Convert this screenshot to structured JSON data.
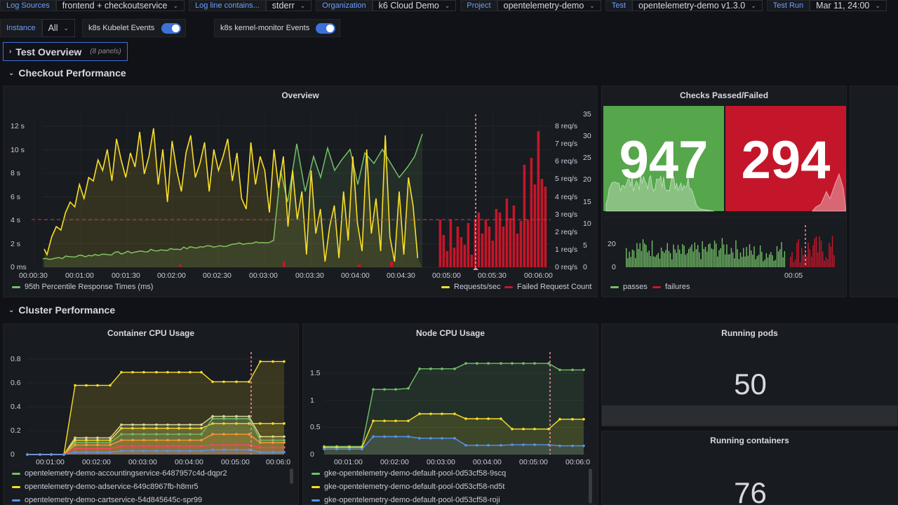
{
  "variables": {
    "row1": [
      {
        "label": "Log Sources",
        "value": "frontend + checkoutservice"
      },
      {
        "label": "Log line contains...",
        "value": "stderr"
      },
      {
        "label": "Organization",
        "value": "k6 Cloud Demo"
      },
      {
        "label": "Project",
        "value": "opentelemetry-demo"
      },
      {
        "label": "Test",
        "value": "opentelemetry-demo v1.3.0"
      },
      {
        "label": "Test Run",
        "value": "Mar 11, 24:00"
      }
    ],
    "instance_label": "Instance",
    "instance_value": "All",
    "toggles": [
      {
        "label": "k8s Kubelet Events"
      },
      {
        "label": "k8s kernel-monitor Events"
      }
    ]
  },
  "rows": {
    "test_overview": {
      "title": "Test Overview",
      "panels": "(8 panels)"
    },
    "checkout": {
      "title": "Checkout Performance"
    },
    "cluster": {
      "title": "Cluster Performance"
    }
  },
  "overview": {
    "title": "Overview",
    "y_left": [
      "12 s",
      "10 s",
      "8 s",
      "6 s",
      "4 s",
      "2 s",
      "0 ms"
    ],
    "y_mid": [
      "8 req/s",
      "7 req/s",
      "6 req/s",
      "5 req/s",
      "4 req/s",
      "3 req/s",
      "2 req/s",
      "1 req/s",
      "0 req/s"
    ],
    "y_right": [
      "35",
      "30",
      "25",
      "20",
      "15",
      "10",
      "5",
      "0"
    ],
    "x_ticks": [
      "00:00:30",
      "00:01:00",
      "00:01:30",
      "00:02:00",
      "00:02:30",
      "00:03:00",
      "00:03:30",
      "00:04:00",
      "00:04:30",
      "00:05:00",
      "00:05:30",
      "00:06:00"
    ],
    "legend_left": "95th Percentile Response Times (ms)",
    "legend_right": [
      "Requests/sec",
      "Failed Request Count"
    ],
    "colors": {
      "green": "#73bf69",
      "yellow": "#fade2a",
      "red": "#c4162a"
    }
  },
  "checks": {
    "title": "Checks Passed/Failed",
    "passed": "947",
    "failed": "294",
    "y_ticks": [
      "20",
      "0"
    ],
    "x_tick": "00:05",
    "legend": [
      "passes",
      "failures"
    ]
  },
  "container_cpu": {
    "title": "Container CPU Usage",
    "y_ticks": [
      "0.8",
      "0.6",
      "0.4",
      "0.2",
      "0"
    ],
    "x_ticks": [
      "00:01:00",
      "00:02:00",
      "00:03:00",
      "00:04:00",
      "00:05:00",
      "00:06:0"
    ],
    "legend": [
      {
        "name": "opentelemetry-demo-accountingservice-6487957c4d-dqpr2",
        "color": "#73bf69"
      },
      {
        "name": "opentelemetry-demo-adservice-649c8967fb-h8mr5",
        "color": "#fade2a"
      },
      {
        "name": "opentelemetry-demo-cartservice-54d845645c-spr99",
        "color": "#5794f2"
      }
    ]
  },
  "node_cpu": {
    "title": "Node CPU Usage",
    "y_ticks": [
      "1.5",
      "1",
      "0.5",
      "0"
    ],
    "x_ticks": [
      "00:01:00",
      "00:02:00",
      "00:03:00",
      "00:04:00",
      "00:05:00",
      "00:06:0"
    ],
    "legend": [
      {
        "name": "gke-opentelemetry-demo-default-pool-0d53cf58-9scq",
        "color": "#73bf69"
      },
      {
        "name": "gke-opentelemetry-demo-default-pool-0d53cf58-nd5t",
        "color": "#fade2a"
      },
      {
        "name": "gke-opentelemetry-demo-default-pool-0d53cf58-roji",
        "color": "#5794f2"
      }
    ]
  },
  "running_pods": {
    "title": "Running pods",
    "value": "50"
  },
  "running_containers": {
    "title": "Running containers",
    "value": "76"
  }
}
